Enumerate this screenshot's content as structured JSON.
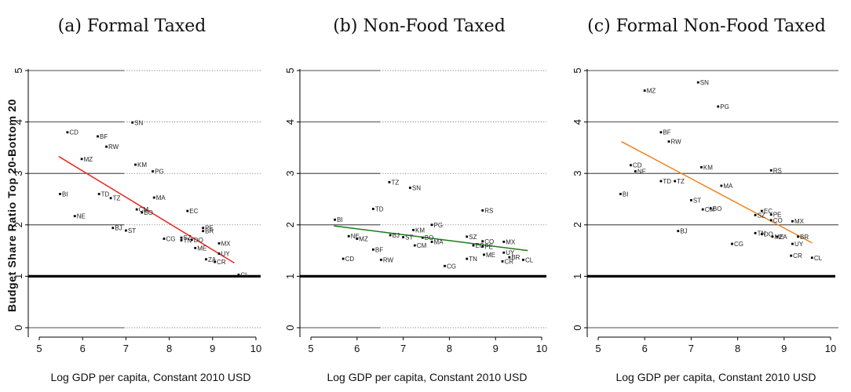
{
  "ylabel": "Budget Share Ratio Top 20-Bottom 20",
  "xlabel": "Log GDP per capita, Constant 2010 USD",
  "chart_data": [
    {
      "type": "scatter",
      "title": "(a) Formal Taxed",
      "xlabel": "Log GDP per capita, Constant 2010 USD",
      "ylabel": "Budget Share Ratio Top 20-Bottom 20",
      "xlim": [
        5,
        10
      ],
      "ylim": [
        0,
        5
      ],
      "xticks": [
        5,
        6,
        7,
        8,
        9,
        10
      ],
      "yticks": [
        0,
        1,
        2,
        3,
        4,
        5
      ],
      "reference_line_y": 1,
      "fit": {
        "color": "#e8261f",
        "x": [
          5.45,
          9.5
        ],
        "y": [
          3.33,
          1.26
        ]
      },
      "points": [
        {
          "label": "CD",
          "x": 5.65,
          "y": 3.8
        },
        {
          "label": "BF",
          "x": 6.35,
          "y": 3.72
        },
        {
          "label": "RW",
          "x": 6.55,
          "y": 3.52
        },
        {
          "label": "MZ",
          "x": 5.98,
          "y": 3.28
        },
        {
          "label": "SN",
          "x": 7.15,
          "y": 3.99
        },
        {
          "label": "KM",
          "x": 7.22,
          "y": 3.17
        },
        {
          "label": "PG",
          "x": 7.62,
          "y": 3.04
        },
        {
          "label": "BI",
          "x": 5.48,
          "y": 2.6
        },
        {
          "label": "TD",
          "x": 6.38,
          "y": 2.6
        },
        {
          "label": "TZ",
          "x": 6.65,
          "y": 2.52
        },
        {
          "label": "MA",
          "x": 7.65,
          "y": 2.53
        },
        {
          "label": "CM",
          "x": 7.25,
          "y": 2.3
        },
        {
          "label": "BO",
          "x": 7.37,
          "y": 2.24
        },
        {
          "label": "EC",
          "x": 8.42,
          "y": 2.27
        },
        {
          "label": "NE",
          "x": 5.82,
          "y": 2.17
        },
        {
          "label": "BJ",
          "x": 6.7,
          "y": 1.94
        },
        {
          "label": "ST",
          "x": 7.0,
          "y": 1.89
        },
        {
          "label": "CG",
          "x": 7.88,
          "y": 1.73
        },
        {
          "label": "PE",
          "x": 8.78,
          "y": 1.94
        },
        {
          "label": "SZ",
          "x": 8.28,
          "y": 1.75
        },
        {
          "label": "TN",
          "x": 8.28,
          "y": 1.7
        },
        {
          "label": "DO",
          "x": 8.52,
          "y": 1.71
        },
        {
          "label": "BR",
          "x": 8.78,
          "y": 1.88
        },
        {
          "label": "ME",
          "x": 8.6,
          "y": 1.55
        },
        {
          "label": "MX",
          "x": 9.15,
          "y": 1.64
        },
        {
          "label": "UY",
          "x": 9.15,
          "y": 1.44
        },
        {
          "label": "ZA",
          "x": 8.85,
          "y": 1.33
        },
        {
          "label": "CR",
          "x": 9.05,
          "y": 1.28
        },
        {
          "label": "CL",
          "x": 9.6,
          "y": 1.03
        }
      ]
    },
    {
      "type": "scatter",
      "title": "(b) Non-Food Taxed",
      "xlabel": "Log GDP per capita, Constant 2010 USD",
      "xlim": [
        5,
        10
      ],
      "ylim": [
        0,
        5
      ],
      "xticks": [
        5,
        6,
        7,
        8,
        9,
        10
      ],
      "yticks": [
        0,
        1,
        2,
        3,
        4,
        5
      ],
      "reference_line_y": 1,
      "fit": {
        "color": "#1a7a1a",
        "x": [
          5.5,
          9.7
        ],
        "y": [
          1.98,
          1.5
        ]
      },
      "points": [
        {
          "label": "TZ",
          "x": 6.7,
          "y": 2.83
        },
        {
          "label": "SN",
          "x": 7.15,
          "y": 2.72
        },
        {
          "label": "TD",
          "x": 6.35,
          "y": 2.31
        },
        {
          "label": "RS",
          "x": 8.72,
          "y": 2.28
        },
        {
          "label": "BI",
          "x": 5.52,
          "y": 2.1
        },
        {
          "label": "PG",
          "x": 7.62,
          "y": 2.0
        },
        {
          "label": "KM",
          "x": 7.22,
          "y": 1.9
        },
        {
          "label": "NE",
          "x": 5.82,
          "y": 1.78
        },
        {
          "label": "BJ",
          "x": 6.72,
          "y": 1.8
        },
        {
          "label": "ST",
          "x": 7.0,
          "y": 1.76
        },
        {
          "label": "BO",
          "x": 7.42,
          "y": 1.75
        },
        {
          "label": "MZ",
          "x": 6.0,
          "y": 1.73
        },
        {
          "label": "SZ",
          "x": 8.38,
          "y": 1.77
        },
        {
          "label": "CO",
          "x": 8.72,
          "y": 1.68
        },
        {
          "label": "MX",
          "x": 9.18,
          "y": 1.67
        },
        {
          "label": "MA",
          "x": 7.62,
          "y": 1.67
        },
        {
          "label": "CM",
          "x": 7.25,
          "y": 1.6
        },
        {
          "label": "EC",
          "x": 8.52,
          "y": 1.6
        },
        {
          "label": "PE",
          "x": 8.72,
          "y": 1.58
        },
        {
          "label": "BF",
          "x": 6.35,
          "y": 1.52
        },
        {
          "label": "UY",
          "x": 9.18,
          "y": 1.46
        },
        {
          "label": "ME",
          "x": 8.75,
          "y": 1.42
        },
        {
          "label": "BR",
          "x": 9.3,
          "y": 1.37
        },
        {
          "label": "CD",
          "x": 5.7,
          "y": 1.34
        },
        {
          "label": "RW",
          "x": 6.52,
          "y": 1.32
        },
        {
          "label": "TN",
          "x": 8.38,
          "y": 1.34
        },
        {
          "label": "CR",
          "x": 9.15,
          "y": 1.29
        },
        {
          "label": "CL",
          "x": 9.6,
          "y": 1.32
        },
        {
          "label": "CG",
          "x": 7.9,
          "y": 1.2
        }
      ]
    },
    {
      "type": "scatter",
      "title": "(c) Formal Non-Food Taxed",
      "xlabel": "Log GDP per capita, Constant 2010 USD",
      "xlim": [
        5,
        10
      ],
      "ylim": [
        0,
        5
      ],
      "xticks": [
        5,
        6,
        7,
        8,
        9,
        10
      ],
      "yticks": [
        0,
        1,
        2,
        3,
        4,
        5
      ],
      "reference_line_y": 1,
      "fit": {
        "color": "#f0821e",
        "x": [
          5.5,
          9.6
        ],
        "y": [
          3.62,
          1.65
        ]
      },
      "points": [
        {
          "label": "SN",
          "x": 7.15,
          "y": 4.77
        },
        {
          "label": "MZ",
          "x": 6.0,
          "y": 4.61
        },
        {
          "label": "PG",
          "x": 7.58,
          "y": 4.3
        },
        {
          "label": "BF",
          "x": 6.35,
          "y": 3.8
        },
        {
          "label": "RW",
          "x": 6.52,
          "y": 3.62
        },
        {
          "label": "CD",
          "x": 5.7,
          "y": 3.16
        },
        {
          "label": "NE",
          "x": 5.8,
          "y": 3.04
        },
        {
          "label": "KM",
          "x": 7.22,
          "y": 3.12
        },
        {
          "label": "RS",
          "x": 8.72,
          "y": 3.06
        },
        {
          "label": "TD",
          "x": 6.35,
          "y": 2.85
        },
        {
          "label": "TZ",
          "x": 6.65,
          "y": 2.85
        },
        {
          "label": "MA",
          "x": 7.65,
          "y": 2.76
        },
        {
          "label": "BI",
          "x": 5.48,
          "y": 2.6
        },
        {
          "label": "ST",
          "x": 7.0,
          "y": 2.48
        },
        {
          "label": "CM",
          "x": 7.25,
          "y": 2.3
        },
        {
          "label": "BO",
          "x": 7.42,
          "y": 2.32
        },
        {
          "label": "EC",
          "x": 8.52,
          "y": 2.27
        },
        {
          "label": "SZ",
          "x": 8.38,
          "y": 2.19
        },
        {
          "label": "PE",
          "x": 8.72,
          "y": 2.2
        },
        {
          "label": "CO",
          "x": 8.72,
          "y": 2.09
        },
        {
          "label": "MX",
          "x": 9.18,
          "y": 2.07
        },
        {
          "label": "BJ",
          "x": 6.72,
          "y": 1.88
        },
        {
          "label": "TN",
          "x": 8.38,
          "y": 1.84
        },
        {
          "label": "DO",
          "x": 8.52,
          "y": 1.82
        },
        {
          "label": "ME",
          "x": 8.75,
          "y": 1.77
        },
        {
          "label": "ZA",
          "x": 8.85,
          "y": 1.77
        },
        {
          "label": "BR",
          "x": 9.3,
          "y": 1.77
        },
        {
          "label": "CG",
          "x": 7.88,
          "y": 1.63
        },
        {
          "label": "UY",
          "x": 9.18,
          "y": 1.63
        },
        {
          "label": "CR",
          "x": 9.15,
          "y": 1.4
        },
        {
          "label": "CL",
          "x": 9.6,
          "y": 1.36
        }
      ]
    }
  ]
}
